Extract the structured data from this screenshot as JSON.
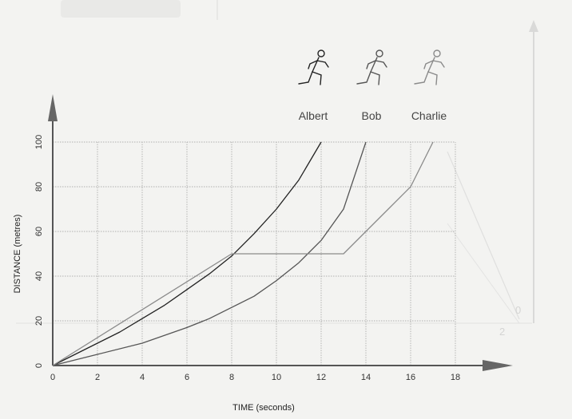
{
  "chart_data": {
    "type": "line",
    "xlabel": "TIME   (seconds)",
    "ylabel": "DISTANCE  (metres)",
    "xlim": [
      0,
      18
    ],
    "ylim": [
      0,
      100
    ],
    "x_ticks": [
      "0",
      "2",
      "4",
      "6",
      "8",
      "10",
      "12",
      "14",
      "16",
      "18"
    ],
    "y_ticks": [
      "0",
      "20",
      "40",
      "60",
      "80",
      "100"
    ],
    "grid": true,
    "legend_placement": "top-right",
    "series": [
      {
        "name": "Albert",
        "color": "#222222",
        "x": [
          0,
          1,
          2,
          3,
          4,
          5,
          6,
          7,
          8,
          9,
          10,
          11,
          12
        ],
        "y": [
          0,
          5,
          10,
          15,
          21,
          27,
          34,
          41,
          49,
          59,
          70,
          83,
          100
        ]
      },
      {
        "name": "Bob",
        "color": "#555555",
        "x": [
          0,
          2,
          4,
          6,
          7,
          8,
          9,
          10,
          11,
          12,
          13,
          14
        ],
        "y": [
          0,
          5,
          10,
          17,
          21,
          26,
          31,
          38,
          46,
          56,
          70,
          100
        ]
      },
      {
        "name": "Charlie",
        "color": "#8a8a8a",
        "x": [
          0,
          8,
          13,
          14,
          15,
          16,
          17
        ],
        "y": [
          0,
          50,
          50,
          60,
          70,
          80,
          100
        ]
      }
    ]
  },
  "legend_icon": "running-person-icon",
  "background_text": [
    "0",
    "2"
  ]
}
